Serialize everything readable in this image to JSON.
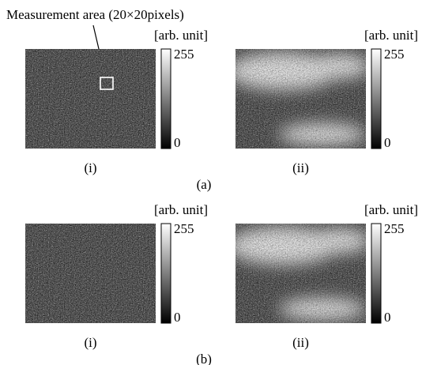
{
  "annotation": "Measurement area (20×20pixels)",
  "colorbar": {
    "unit": "[arb. unit]",
    "max": 255,
    "min": 0
  },
  "groups": [
    {
      "label": "(a)",
      "panels": [
        {
          "label": "(i)"
        },
        {
          "label": "(ii)"
        }
      ]
    },
    {
      "label": "(b)",
      "panels": [
        {
          "label": "(i)"
        },
        {
          "label": "(ii)"
        }
      ]
    }
  ]
}
